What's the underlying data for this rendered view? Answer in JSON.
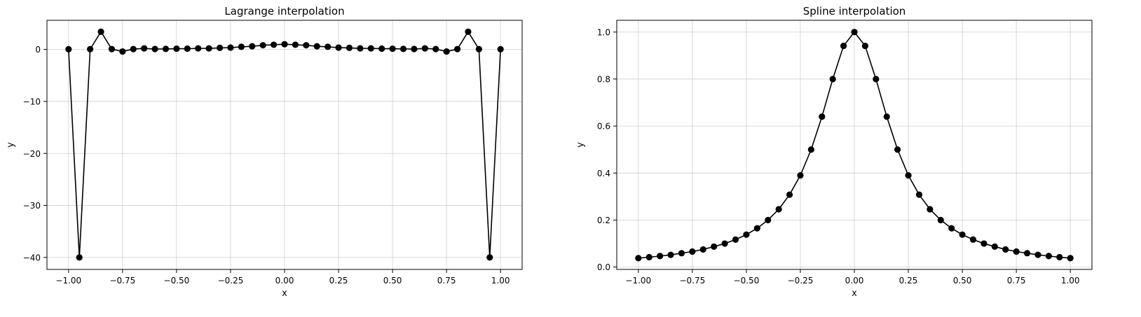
{
  "chart_data": [
    {
      "type": "line",
      "title": "Lagrange interpolation",
      "xlabel": "x",
      "ylabel": "y",
      "xlim": [
        -1.1,
        1.1
      ],
      "ylim": [
        -42.3,
        5.6
      ],
      "xticks": [
        -1.0,
        -0.75,
        -0.5,
        -0.25,
        0.0,
        0.25,
        0.5,
        0.75,
        1.0
      ],
      "xtick_labels": [
        "−1.00",
        "−0.75",
        "−0.50",
        "−0.25",
        "0.00",
        "0.25",
        "0.50",
        "0.75",
        "1.00"
      ],
      "yticks": [
        -40,
        -30,
        -20,
        -10,
        0
      ],
      "ytick_labels": [
        "−40",
        "−30",
        "−20",
        "−10",
        "0"
      ],
      "grid": true,
      "color": "#000000",
      "marker": "circle",
      "x": [
        -1.0,
        -0.95,
        -0.9,
        -0.85,
        -0.8,
        -0.75,
        -0.7,
        -0.65,
        -0.6,
        -0.55,
        -0.5,
        -0.45,
        -0.4,
        -0.35,
        -0.3,
        -0.25,
        -0.2,
        -0.15,
        -0.1,
        -0.05,
        0.0,
        0.05,
        0.1,
        0.15,
        0.2,
        0.25,
        0.3,
        0.35,
        0.4,
        0.45,
        0.5,
        0.55,
        0.6,
        0.65,
        0.7,
        0.75,
        0.8,
        0.85,
        0.9,
        0.95,
        1.0
      ],
      "y": [
        0.04,
        -40.0,
        0.05,
        3.4,
        0.06,
        -0.4,
        0.07,
        0.2,
        0.08,
        0.1,
        0.14,
        0.15,
        0.2,
        0.2,
        0.3,
        0.35,
        0.5,
        0.6,
        0.8,
        0.9,
        1.0,
        0.9,
        0.8,
        0.6,
        0.5,
        0.35,
        0.3,
        0.2,
        0.2,
        0.15,
        0.14,
        0.1,
        0.08,
        0.2,
        0.07,
        -0.4,
        0.06,
        3.4,
        0.05,
        -40.0,
        0.04
      ]
    },
    {
      "type": "line",
      "title": "Spline interpolation",
      "xlabel": "x",
      "ylabel": "y",
      "xlim": [
        -1.1,
        1.1
      ],
      "ylim": [
        -0.01,
        1.05
      ],
      "xticks": [
        -1.0,
        -0.75,
        -0.5,
        -0.25,
        0.0,
        0.25,
        0.5,
        0.75,
        1.0
      ],
      "xtick_labels": [
        "−1.00",
        "−0.75",
        "−0.50",
        "−0.25",
        "0.00",
        "0.25",
        "0.50",
        "0.75",
        "1.00"
      ],
      "yticks": [
        0.0,
        0.2,
        0.4,
        0.6,
        0.8,
        1.0
      ],
      "ytick_labels": [
        "0.0",
        "0.2",
        "0.4",
        "0.6",
        "0.8",
        "1.0"
      ],
      "grid": true,
      "color": "#000000",
      "marker": "circle",
      "x": [
        -1.0,
        -0.95,
        -0.9,
        -0.85,
        -0.8,
        -0.75,
        -0.7,
        -0.65,
        -0.6,
        -0.55,
        -0.5,
        -0.45,
        -0.4,
        -0.35,
        -0.3,
        -0.25,
        -0.2,
        -0.15,
        -0.1,
        -0.05,
        0.0,
        0.05,
        0.1,
        0.15,
        0.2,
        0.25,
        0.3,
        0.35,
        0.4,
        0.45,
        0.5,
        0.55,
        0.6,
        0.65,
        0.7,
        0.75,
        0.8,
        0.85,
        0.9,
        0.95,
        1.0
      ],
      "y": [
        0.038,
        0.042,
        0.047,
        0.052,
        0.059,
        0.066,
        0.075,
        0.087,
        0.1,
        0.117,
        0.138,
        0.165,
        0.2,
        0.246,
        0.308,
        0.39,
        0.5,
        0.64,
        0.8,
        0.941,
        1.0,
        0.941,
        0.8,
        0.64,
        0.5,
        0.39,
        0.308,
        0.246,
        0.2,
        0.165,
        0.138,
        0.117,
        0.1,
        0.087,
        0.075,
        0.066,
        0.059,
        0.052,
        0.047,
        0.042,
        0.038
      ]
    }
  ]
}
